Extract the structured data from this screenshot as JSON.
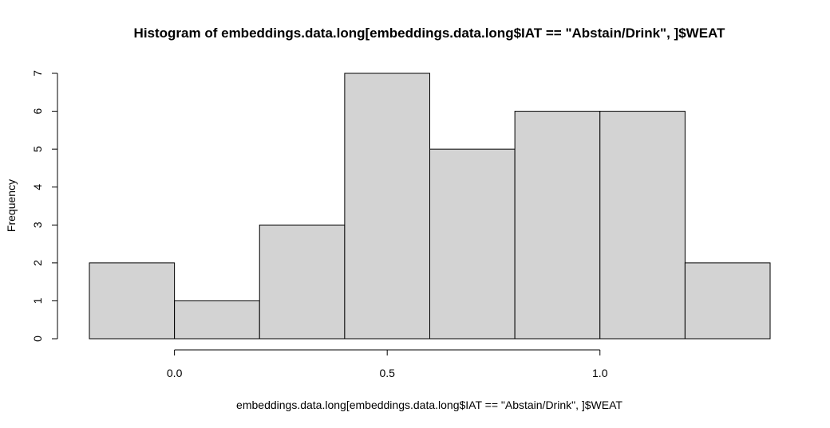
{
  "chart_data": {
    "type": "bar",
    "title": "Histogram of embeddings.data.long[embeddings.data.long$IAT == \"Abstain/Drink\", ]$WEAT",
    "xlabel": "embeddings.data.long[embeddings.data.long$IAT == \"Abstain/Drink\", ]$WEAT",
    "ylabel": "Frequency",
    "bins": [
      {
        "start": -0.2,
        "end": 0.0,
        "count": 2
      },
      {
        "start": 0.0,
        "end": 0.2,
        "count": 1
      },
      {
        "start": 0.2,
        "end": 0.4,
        "count": 3
      },
      {
        "start": 0.4,
        "end": 0.6,
        "count": 7
      },
      {
        "start": 0.6,
        "end": 0.8,
        "count": 5
      },
      {
        "start": 0.8,
        "end": 1.0,
        "count": 6
      },
      {
        "start": 1.0,
        "end": 1.2,
        "count": 6
      },
      {
        "start": 1.2,
        "end": 1.4,
        "count": 2
      }
    ],
    "x_ticks": [
      {
        "value": 0.0,
        "label": "0.0"
      },
      {
        "value": 0.5,
        "label": "0.5"
      },
      {
        "value": 1.0,
        "label": "1.0"
      }
    ],
    "y_ticks": [
      {
        "value": 0,
        "label": "0"
      },
      {
        "value": 1,
        "label": "1"
      },
      {
        "value": 2,
        "label": "2"
      },
      {
        "value": 3,
        "label": "3"
      },
      {
        "value": 4,
        "label": "4"
      },
      {
        "value": 5,
        "label": "5"
      },
      {
        "value": 6,
        "label": "6"
      },
      {
        "value": 7,
        "label": "7"
      }
    ],
    "xlim": [
      -0.2,
      1.4
    ],
    "ylim": [
      0,
      7
    ],
    "bar_color": "#d3d3d3",
    "grid": false
  }
}
